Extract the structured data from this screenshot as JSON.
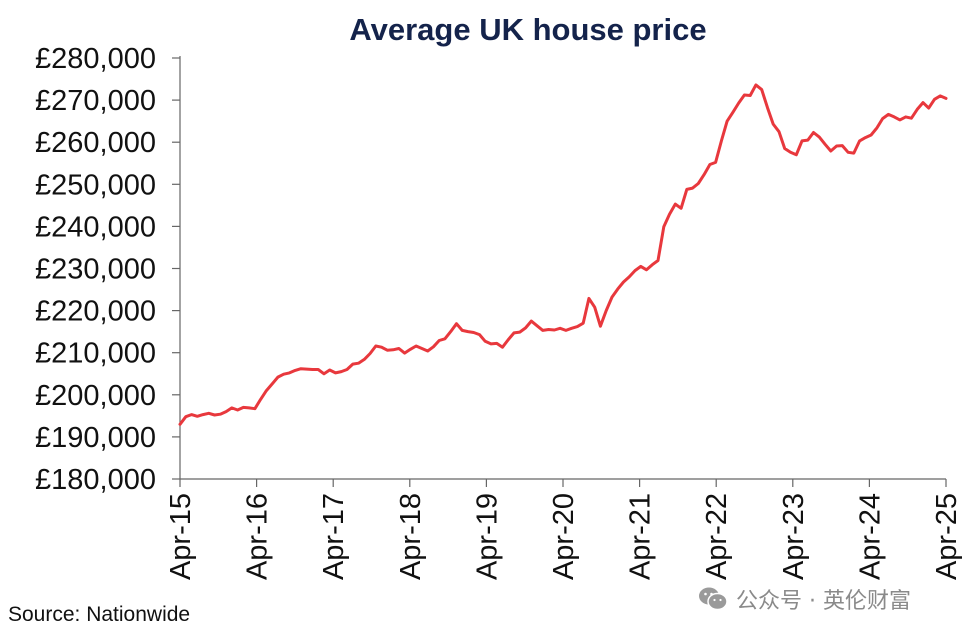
{
  "chart_data": {
    "type": "line",
    "title": "Average UK house price",
    "xlabel": "",
    "ylabel": "",
    "ylim": [
      180000,
      280000
    ],
    "yticks": [
      "£180,000",
      "£190,000",
      "£200,000",
      "£210,000",
      "£220,000",
      "£230,000",
      "£240,000",
      "£250,000",
      "£260,000",
      "£270,000",
      "£280,000"
    ],
    "xticks": [
      "Apr-15",
      "Apr-16",
      "Apr-17",
      "Apr-18",
      "Apr-19",
      "Apr-20",
      "Apr-21",
      "Apr-22",
      "Apr-23",
      "Apr-24",
      "Apr-25"
    ],
    "line_color": "#e8383d",
    "grid": false,
    "series": [
      {
        "values": [
          193000,
          194800,
          195300,
          194900,
          195300,
          195600,
          195200,
          195400,
          196000,
          196900,
          196400,
          197000,
          196900,
          196700,
          198900,
          201000,
          202600,
          204200,
          204900,
          205200,
          205800,
          206200,
          206100,
          206000,
          206000,
          205000,
          205900,
          205200,
          205500,
          206000,
          207300,
          207500,
          208400,
          209800,
          211600,
          211300,
          210600,
          210700,
          211000,
          209900,
          210800,
          211600,
          211000,
          210400,
          211400,
          212900,
          213300,
          215000,
          216900,
          215300,
          215000,
          214800,
          214300,
          212700,
          212100,
          212200,
          211300,
          213100,
          214700,
          214900,
          215900,
          217500,
          216400,
          215300,
          215500,
          215400,
          215800,
          215300,
          215800,
          216200,
          217000,
          222900,
          220800,
          216300,
          220000,
          223200,
          225100,
          226800,
          228000,
          229500,
          230500,
          229700,
          230900,
          231900,
          239900,
          242900,
          245300,
          244300,
          248800,
          249100,
          250200,
          252300,
          254700,
          255200,
          260300,
          265000,
          267100,
          269300,
          271200,
          271100,
          273600,
          272500,
          268200,
          264300,
          262500,
          258500,
          257600,
          257000,
          260300,
          260500,
          262300,
          261200,
          259500,
          257900,
          259100,
          259200,
          257600,
          257400,
          260300,
          261100,
          261700,
          263400,
          265600,
          266600,
          266000,
          265300,
          266000,
          265700,
          267800,
          269400,
          268100,
          270200,
          271000,
          270400
        ]
      }
    ]
  },
  "source": "Source: Nationwide",
  "watermark": {
    "text": "公众号 · 英伦财富",
    "icon": "wechat-icon"
  }
}
